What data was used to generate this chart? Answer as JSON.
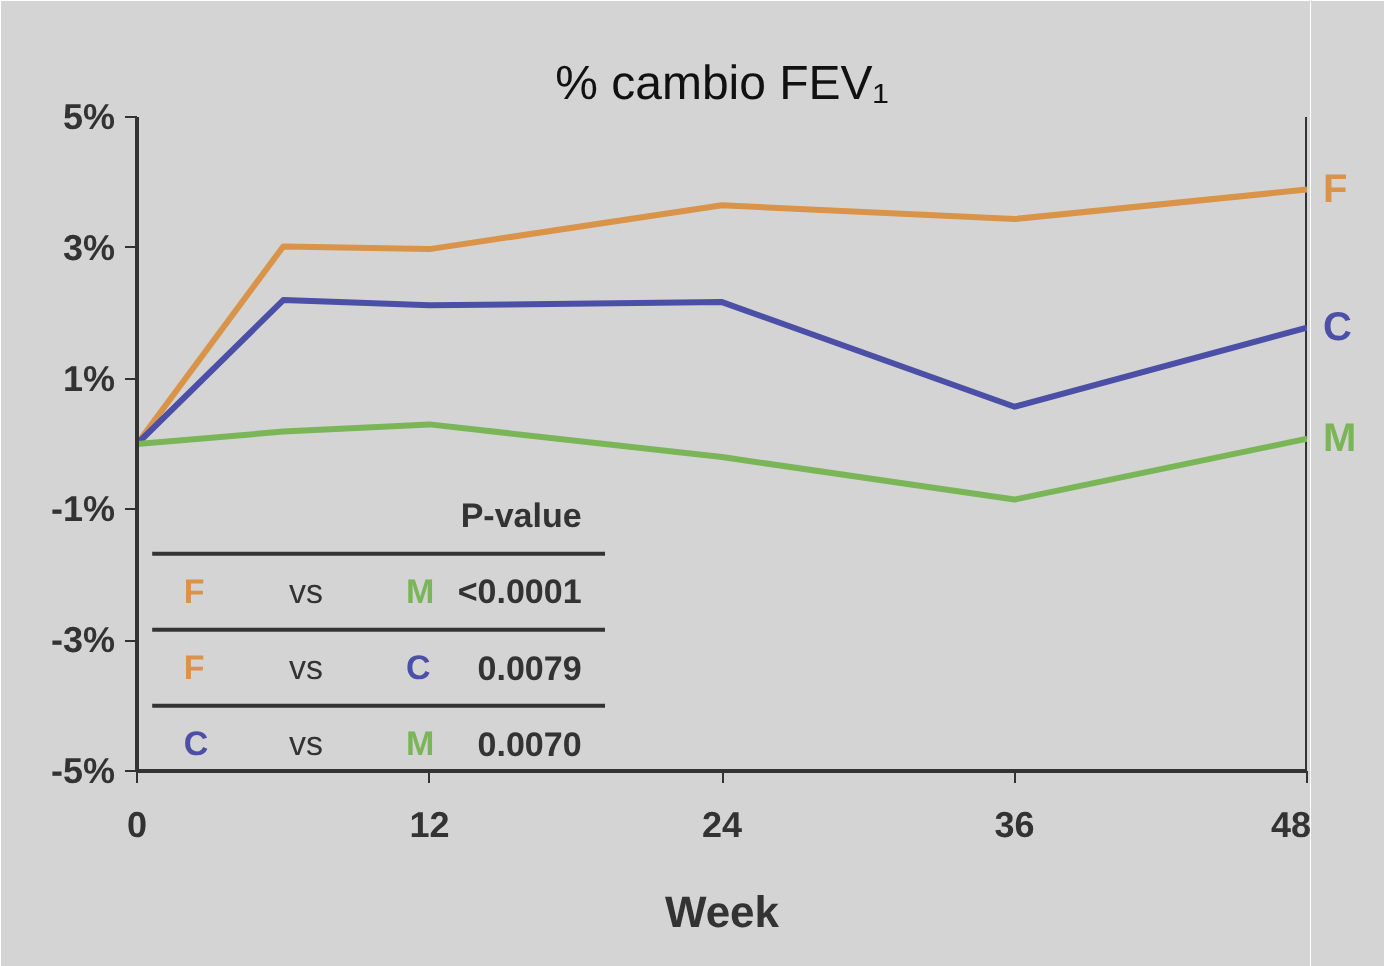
{
  "chart_data": {
    "type": "line",
    "title": "% cambio FEV₁",
    "xlabel": "Week",
    "x": [
      0,
      6,
      12,
      24,
      36,
      48
    ],
    "series": [
      {
        "name": "F",
        "color": "#d9944a",
        "values": [
          0,
          3.02,
          2.98,
          3.65,
          3.44,
          3.89
        ]
      },
      {
        "name": "C",
        "color": "#4b4fa6",
        "values": [
          0,
          2.2,
          2.12,
          2.17,
          0.57,
          1.78
        ]
      },
      {
        "name": "M",
        "color": "#7ab657",
        "values": [
          0,
          0.19,
          0.3,
          -0.2,
          -0.85,
          0.08
        ]
      }
    ],
    "xlim": [
      0,
      48
    ],
    "xticks": [
      0,
      12,
      24,
      36,
      48
    ],
    "ylim": [
      -5,
      5
    ],
    "yticks": [
      {
        "value": 5,
        "label": "5%"
      },
      {
        "value": 3,
        "label": "3%"
      },
      {
        "value": 1,
        "label": "1%"
      },
      {
        "value": -1,
        "label": "-1%"
      },
      {
        "value": -3,
        "label": "-3%"
      },
      {
        "value": -5,
        "label": "-5%"
      }
    ],
    "grid": false,
    "marker": "none",
    "line_style": "solid",
    "annotations": [
      "P-value",
      "F vs M <0.0001",
      "F vs C 0.0079",
      "C vs M 0.0070"
    ]
  }
}
